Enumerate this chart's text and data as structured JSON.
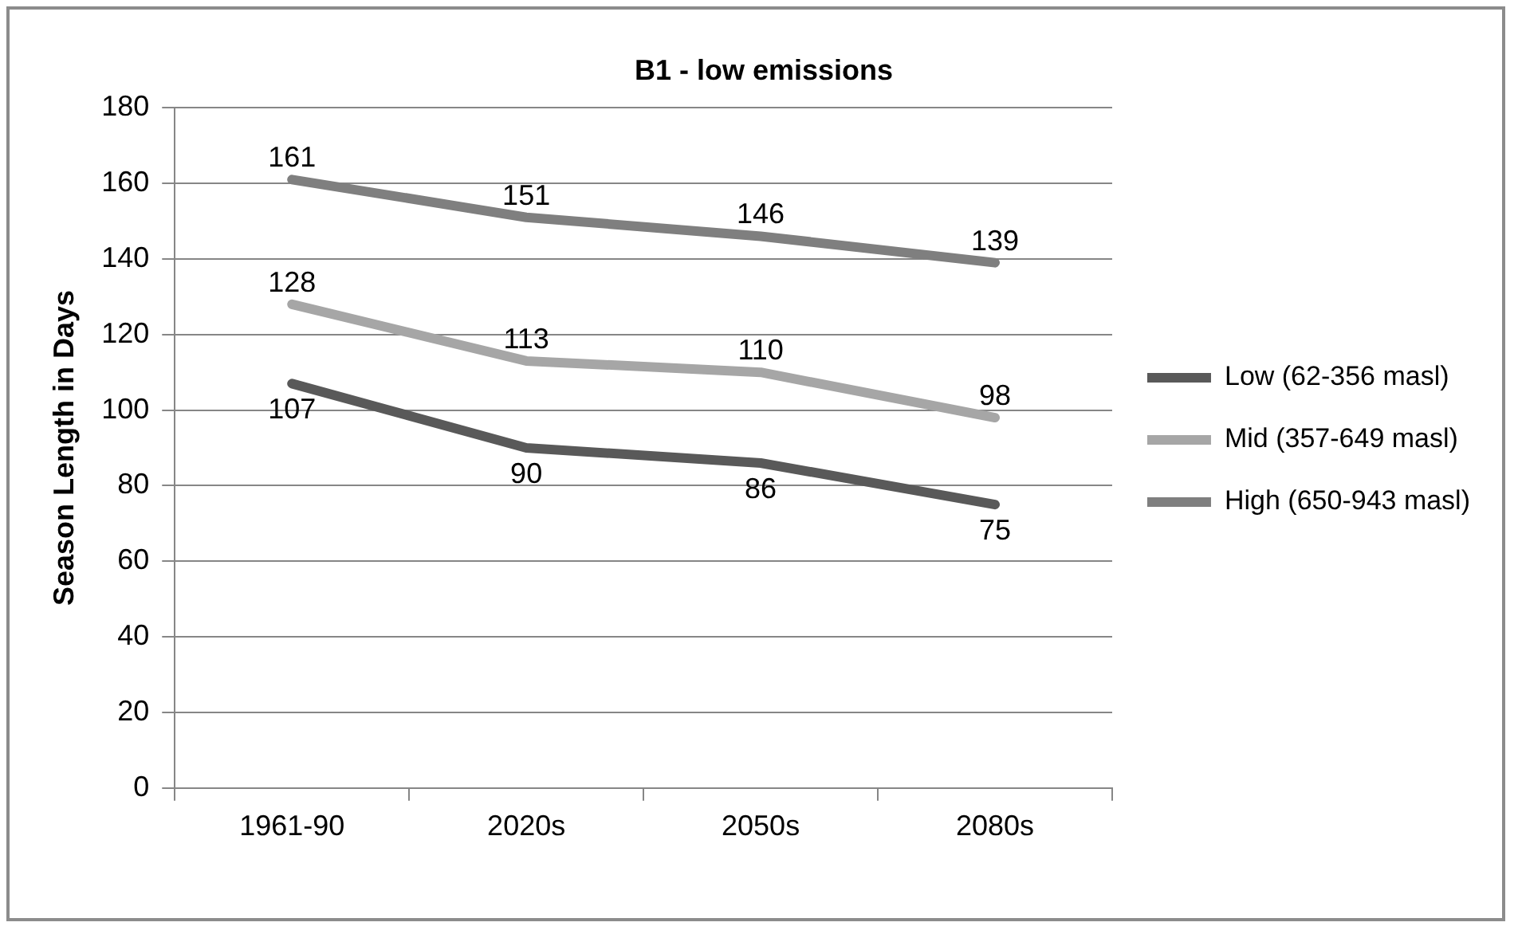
{
  "chart_data": {
    "type": "line",
    "title": "B1 - low emissions",
    "ylabel": "Season Length in Days",
    "categories": [
      "1961-90",
      "2020s",
      "2050s",
      "2080s"
    ],
    "series": [
      {
        "name": "Low (62-356 masl)",
        "color": "#595959",
        "values": [
          107,
          90,
          86,
          75
        ]
      },
      {
        "name": "Mid (357-649 masl)",
        "color": "#a6a6a6",
        "values": [
          128,
          113,
          110,
          98
        ]
      },
      {
        "name": "High (650-943 masl)",
        "color": "#7f7f7f",
        "values": [
          161,
          151,
          146,
          139
        ]
      }
    ],
    "ylim": [
      0,
      180
    ],
    "yticks": [
      0,
      20,
      40,
      60,
      80,
      100,
      120,
      140,
      160,
      180
    ],
    "grid": "y",
    "legend": "right",
    "data_labels": true,
    "marker": "none",
    "line_style": "solid"
  }
}
